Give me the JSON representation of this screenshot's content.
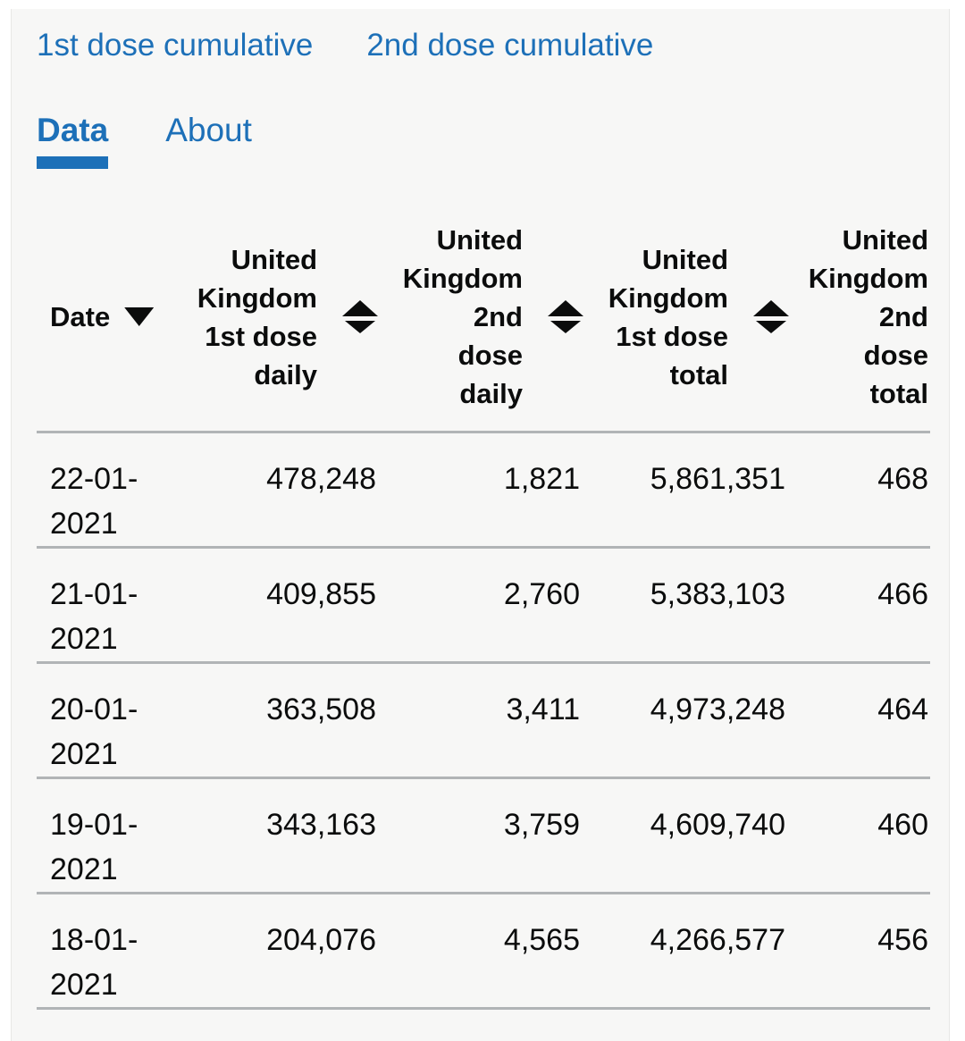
{
  "colors": {
    "accent_blue": "#1d70b8",
    "text_black": "#0b0c0c",
    "panel_background": "#f7f7f6",
    "divider_grey": "#b1b4b6",
    "page_background": "#ffffff"
  },
  "links": [
    {
      "label": "1st dose cumulative"
    },
    {
      "label": "2nd dose cumulative"
    }
  ],
  "tabs": [
    {
      "label": "Data",
      "active": true
    },
    {
      "label": "About",
      "active": false
    }
  ],
  "table": {
    "columns": [
      {
        "label": "Date",
        "sort": "descending"
      },
      {
        "label": "United\nKingdom\n1st dose\ndaily",
        "sort": "sortable"
      },
      {
        "label": "United\nKingdom\n2nd\ndose\ndaily",
        "sort": "sortable"
      },
      {
        "label": "United\nKingdom\n1st dose\ntotal",
        "sort": "sortable"
      },
      {
        "label": "United\nKingdom\n2nd\ndose\ntotal",
        "sort": "sortable"
      }
    ],
    "rows": [
      {
        "date": "22-01-2021",
        "dose1_daily": "478,248",
        "dose2_daily": "1,821",
        "dose1_total": "5,861,351",
        "dose2_total_visible": "468"
      },
      {
        "date": "21-01-2021",
        "dose1_daily": "409,855",
        "dose2_daily": "2,760",
        "dose1_total": "5,383,103",
        "dose2_total_visible": "466"
      },
      {
        "date": "20-01-2021",
        "dose1_daily": "363,508",
        "dose2_daily": "3,411",
        "dose1_total": "4,973,248",
        "dose2_total_visible": "464"
      },
      {
        "date": "19-01-2021",
        "dose1_daily": "343,163",
        "dose2_daily": "3,759",
        "dose1_total": "4,609,740",
        "dose2_total_visible": "460"
      },
      {
        "date": "18-01-2021",
        "dose1_daily": "204,076",
        "dose2_daily": "4,565",
        "dose1_total": "4,266,577",
        "dose2_total_visible": "456"
      }
    ]
  }
}
